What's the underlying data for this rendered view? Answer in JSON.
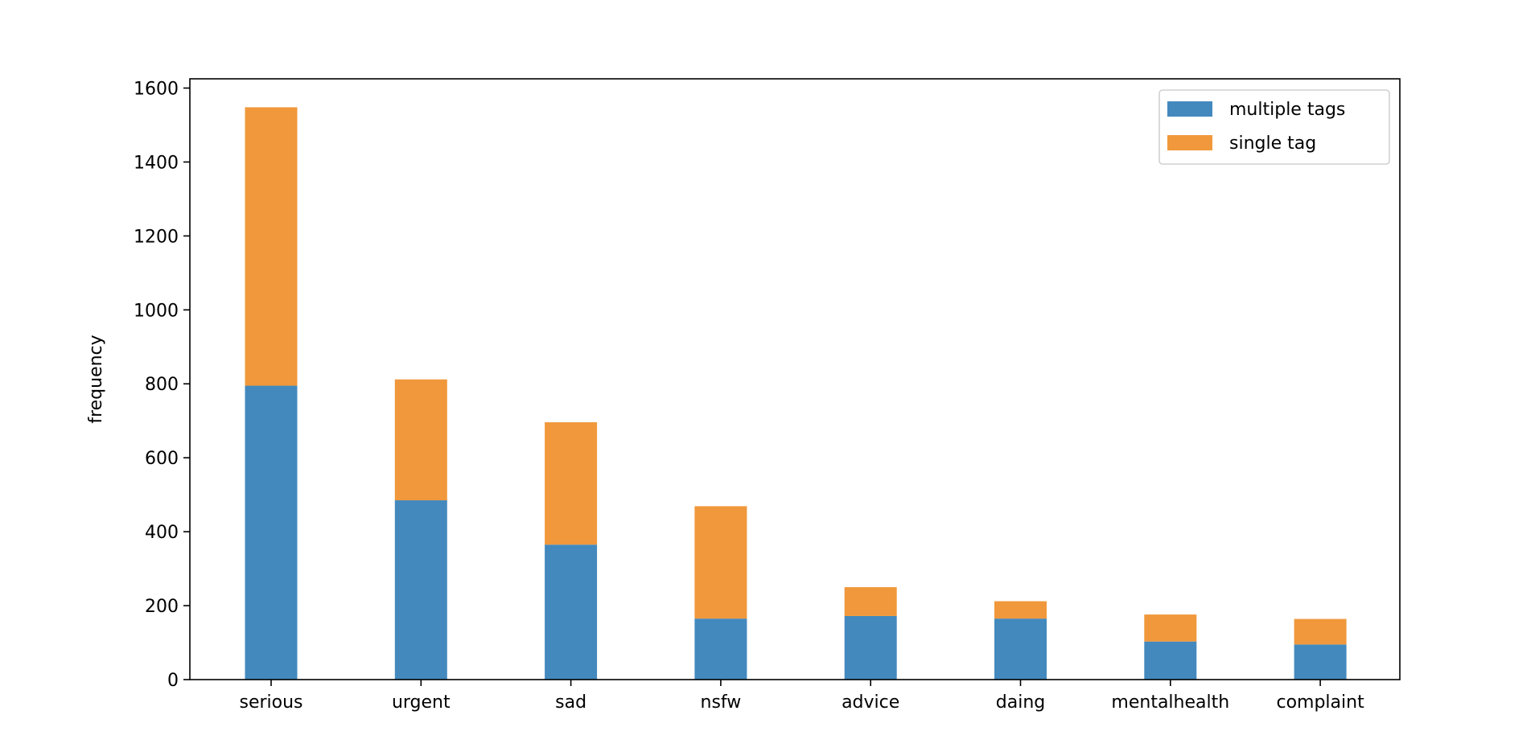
{
  "chart_data": {
    "type": "bar",
    "stacked": true,
    "categories": [
      "serious",
      "urgent",
      "sad",
      "nsfw",
      "advice",
      "daing",
      "mentalhealth",
      "complaint"
    ],
    "series": [
      {
        "name": "multiple tags",
        "color": "#4389be",
        "values": [
          795,
          485,
          365,
          165,
          172,
          165,
          103,
          95
        ]
      },
      {
        "name": "single tag",
        "color": "#f0983b",
        "values": [
          753,
          327,
          331,
          304,
          78,
          47,
          73,
          69
        ]
      }
    ],
    "xlabel": "",
    "ylabel": "frequency",
    "ylim": [
      0,
      1625
    ],
    "yticks": [
      0,
      200,
      400,
      600,
      800,
      1000,
      1200,
      1400,
      1600
    ],
    "grid": false,
    "legend_position": "top-right"
  }
}
